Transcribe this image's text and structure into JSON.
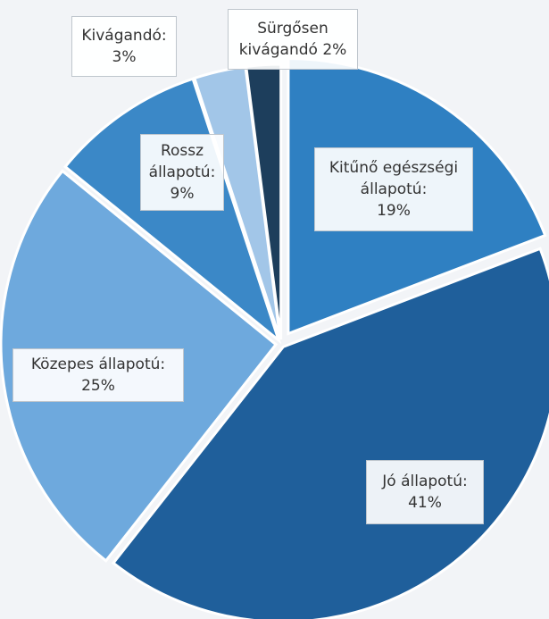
{
  "chart_data": {
    "type": "pie",
    "categories": [
      "Kitűnő egészségi állapotú:",
      "Jó állapotú:",
      "Közepes állapotú:",
      "Rossz állapotú:",
      "Kivágandó:",
      "Sürgősen kivágandó"
    ],
    "values": [
      19,
      41,
      25,
      9,
      3,
      2
    ],
    "value_labels": [
      "19%",
      "41%",
      "25%",
      "9%",
      "3%",
      "2%"
    ],
    "colors": [
      "#2f80c2",
      "#1f5f9b",
      "#6ea9dd",
      "#3b88c7",
      "#a2c6e8",
      "#1d3e5c"
    ]
  }
}
